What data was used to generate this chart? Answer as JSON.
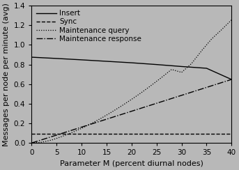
{
  "title": "",
  "xlabel": "Parameter M (percent diurnal nodes)",
  "ylabel": "Messages per node per minute (avg)",
  "xlim": [
    0,
    40
  ],
  "ylim": [
    0,
    1.4
  ],
  "xticks": [
    0,
    5,
    10,
    15,
    20,
    25,
    30,
    35,
    40
  ],
  "yticks": [
    0,
    0.2,
    0.4,
    0.6,
    0.8,
    1.0,
    1.2,
    1.4
  ],
  "background_color": "#b8b8b8",
  "lines": [
    {
      "label": "Insert",
      "style": "-",
      "color": "#000000",
      "x": [
        0,
        5,
        10,
        15,
        20,
        25,
        30,
        35,
        40
      ],
      "y": [
        0.875,
        0.862,
        0.848,
        0.833,
        0.818,
        0.8,
        0.78,
        0.762,
        0.648
      ]
    },
    {
      "label": "Sync",
      "style": "--",
      "color": "#000000",
      "x": [
        0,
        40
      ],
      "y": [
        0.092,
        0.092
      ]
    },
    {
      "label": "Maintenance query",
      "style": ":",
      "color": "#000000",
      "x": [
        0,
        2,
        4,
        6,
        8,
        10,
        12,
        14,
        16,
        18,
        20,
        22,
        24,
        26,
        28,
        30,
        32,
        34,
        36,
        38,
        40
      ],
      "y": [
        0.0,
        0.008,
        0.03,
        0.065,
        0.105,
        0.15,
        0.2,
        0.255,
        0.315,
        0.378,
        0.445,
        0.515,
        0.59,
        0.668,
        0.75,
        0.72,
        0.81,
        0.94,
        1.06,
        1.155,
        1.255
      ]
    },
    {
      "label": "Maintenance response",
      "style": "-.",
      "color": "#000000",
      "x": [
        0,
        40
      ],
      "y": [
        0.0,
        0.648
      ]
    }
  ],
  "legend_loc": "upper left",
  "legend_fontsize": 7.5,
  "tick_fontsize": 7.5,
  "label_fontsize": 8,
  "linewidth": 1.0,
  "dot_linewidth": 0.9
}
